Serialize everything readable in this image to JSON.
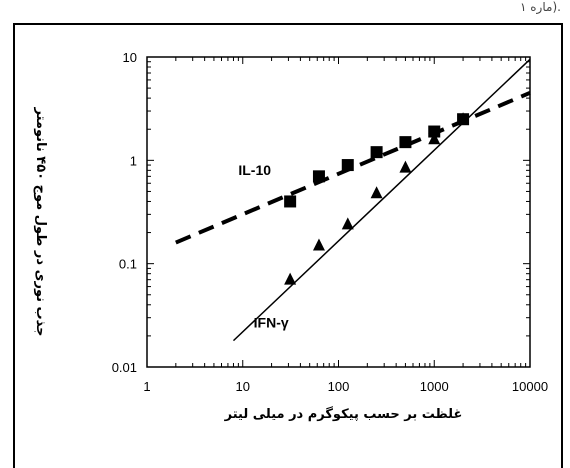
{
  "top_fragment": "ماره ۱).",
  "chart_data": {
    "type": "scatter",
    "xscale": "log",
    "yscale": "log",
    "xlim": [
      1,
      10000
    ],
    "ylim": [
      0.01,
      10
    ],
    "xticks": [
      "1",
      "10",
      "100",
      "1000",
      "10000"
    ],
    "yticks": [
      "0.01",
      "0.1",
      "1",
      "10"
    ],
    "xlabel": "غلظت بر حسب پیکوگرم در میلی لیتر",
    "ylabel": "جذب نوری در طول موج ۴۵۰ نانومتر",
    "grid": false,
    "series": [
      {
        "name": "IL-10",
        "marker": "square",
        "line": "dashed",
        "x": [
          31.25,
          62.5,
          125,
          250,
          500,
          1000,
          2000
        ],
        "y": [
          0.4,
          0.7,
          0.9,
          1.2,
          1.5,
          1.9,
          2.5
        ],
        "fit": {
          "x": [
            2,
            10000
          ],
          "y": [
            0.16,
            4.5
          ]
        }
      },
      {
        "name": "IFN-γ",
        "marker": "triangle",
        "line": "solid",
        "x": [
          31.25,
          62.5,
          125,
          250,
          500,
          1000,
          2000
        ],
        "y": [
          0.07,
          0.15,
          0.24,
          0.48,
          0.85,
          1.6,
          2.5
        ],
        "fit": {
          "x": [
            8,
            10000
          ],
          "y": [
            0.018,
            9.5
          ]
        }
      }
    ]
  }
}
